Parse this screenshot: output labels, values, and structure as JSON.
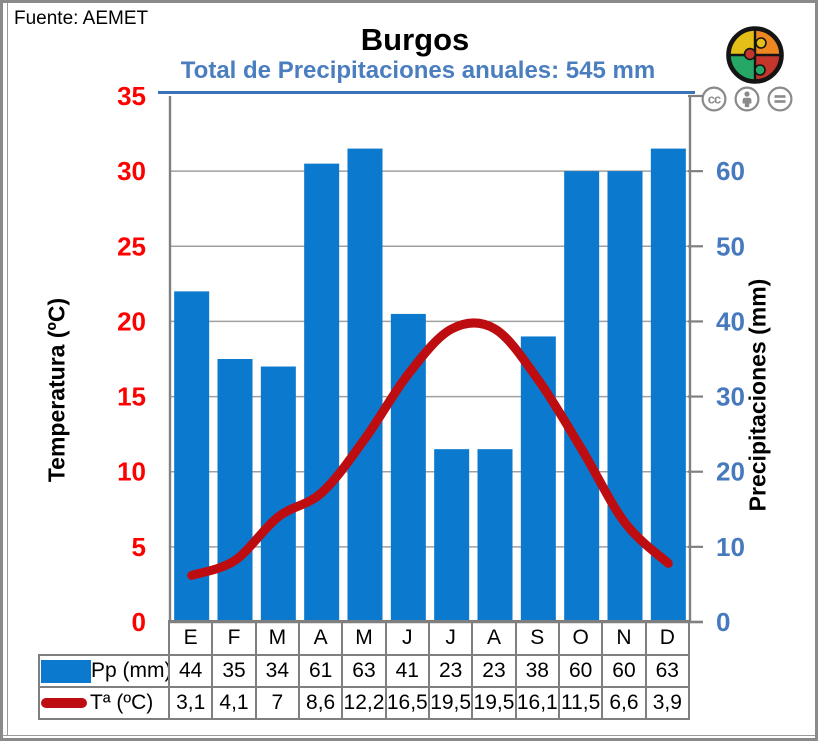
{
  "header": {
    "source": "Fuente: AEMET"
  },
  "chart_data": {
    "type": "combo",
    "title": "Burgos",
    "subtitle": "Total de Precipitaciones anuales: 545 mm",
    "categories": [
      "E",
      "F",
      "M",
      "A",
      "M",
      "J",
      "J",
      "A",
      "S",
      "O",
      "N",
      "D"
    ],
    "series": [
      {
        "name": "Pp (mm)",
        "type": "bar",
        "axis": "right",
        "color": "#0b79ce",
        "values": [
          44,
          35,
          34,
          61,
          63,
          41,
          23,
          23,
          38,
          60,
          60,
          63
        ]
      },
      {
        "name": "Tª (ºC)",
        "type": "line",
        "axis": "left",
        "color": "#bd0d11",
        "values": [
          3.1,
          4.1,
          7,
          8.6,
          12.2,
          16.5,
          19.5,
          19.5,
          16.1,
          11.5,
          6.6,
          3.9
        ]
      }
    ],
    "left_axis": {
      "label": "Temperatura (ºC)",
      "min": 0,
      "max": 35,
      "step": 5,
      "tick_color": "#fe0000",
      "show_max_label": true
    },
    "right_axis": {
      "label": "Precipitaciones (mm)",
      "min": 0,
      "max": 70,
      "step": 10,
      "tick_color": "#4679bd",
      "show_max_label": false
    },
    "grid": true,
    "legend_position": "table-bottom"
  },
  "table": {
    "months": [
      "E",
      "F",
      "M",
      "A",
      "M",
      "J",
      "J",
      "A",
      "S",
      "O",
      "N",
      "D"
    ],
    "rows": [
      {
        "legend": "Pp (mm)",
        "swatch": "bar",
        "values": [
          "44",
          "35",
          "34",
          "61",
          "63",
          "41",
          "23",
          "23",
          "38",
          "60",
          "60",
          "63"
        ]
      },
      {
        "legend": "Tª (ºC)",
        "swatch": "line",
        "values": [
          "3,1",
          "4,1",
          "7",
          "8,6",
          "12,2",
          "16,5",
          "19,5",
          "19,5",
          "16,1",
          "11,5",
          "6,6",
          "3,9"
        ]
      }
    ]
  },
  "branding": {
    "logo": "puzzle-circle-logo",
    "logo_colors": {
      "yellow": "#e3bf17",
      "orange": "#ee8722",
      "green": "#27a765",
      "red": "#c4352c"
    },
    "license_icons": [
      "cc",
      "attribution",
      "equals"
    ]
  },
  "colors": {
    "bar": "#0b79ce",
    "line": "#bd0d11",
    "subtitle": "#4a7ebf",
    "rule": "#3b73b9",
    "grid": "#a0a0a0",
    "axis": "#808080",
    "table_border": "#7f7f7f",
    "frame": "#8a8a8a",
    "license_gray": "#8a8a8a"
  }
}
